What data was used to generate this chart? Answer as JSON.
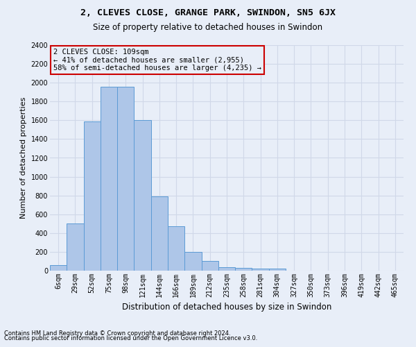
{
  "title1": "2, CLEVES CLOSE, GRANGE PARK, SWINDON, SN5 6JX",
  "title2": "Size of property relative to detached houses in Swindon",
  "xlabel": "Distribution of detached houses by size in Swindon",
  "ylabel": "Number of detached properties",
  "footnote1": "Contains HM Land Registry data © Crown copyright and database right 2024.",
  "footnote2": "Contains public sector information licensed under the Open Government Licence v3.0.",
  "annotation_line1": "2 CLEVES CLOSE: 109sqm",
  "annotation_line2": "← 41% of detached houses are smaller (2,955)",
  "annotation_line3": "58% of semi-detached houses are larger (4,235) →",
  "bar_labels": [
    "6sqm",
    "29sqm",
    "52sqm",
    "75sqm",
    "98sqm",
    "121sqm",
    "144sqm",
    "166sqm",
    "189sqm",
    "212sqm",
    "235sqm",
    "258sqm",
    "281sqm",
    "304sqm",
    "327sqm",
    "350sqm",
    "373sqm",
    "396sqm",
    "419sqm",
    "442sqm",
    "465sqm"
  ],
  "bar_values": [
    60,
    500,
    1590,
    1960,
    1960,
    1600,
    790,
    470,
    200,
    100,
    35,
    30,
    25,
    20,
    0,
    0,
    0,
    0,
    0,
    0,
    0
  ],
  "bar_color": "#aec6e8",
  "bar_edge_color": "#5b9bd5",
  "grid_color": "#d0d8e8",
  "bg_color": "#e8eef8",
  "annotation_box_color": "#cc0000",
  "ylim": [
    0,
    2400
  ],
  "yticks": [
    0,
    200,
    400,
    600,
    800,
    1000,
    1200,
    1400,
    1600,
    1800,
    2000,
    2200,
    2400
  ],
  "title1_fontsize": 9.5,
  "title2_fontsize": 8.5,
  "ylabel_fontsize": 8,
  "xlabel_fontsize": 8.5,
  "tick_fontsize": 7,
  "footnote_fontsize": 6,
  "annot_fontsize": 7.5
}
